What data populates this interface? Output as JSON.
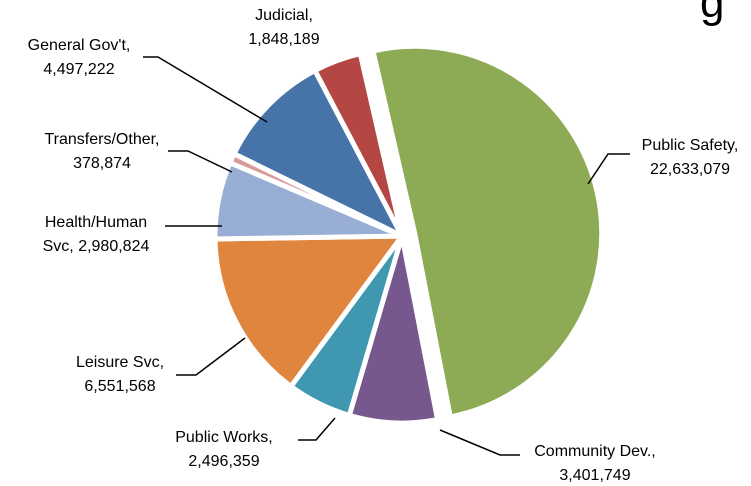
{
  "title_fragment": "g",
  "chart_data": {
    "type": "pie",
    "title": "",
    "slices": [
      {
        "name": "Public Safety",
        "value": 22633079,
        "value_label": "22,633,079",
        "color": "#8DAA54",
        "exploded": true
      },
      {
        "name": "Community Dev.",
        "value": 3401749,
        "value_label": "3,401,749",
        "color": "#76588F",
        "exploded": false
      },
      {
        "name": "Public Works",
        "value": 2496359,
        "value_label": "2,496,359",
        "color": "#4098B0",
        "exploded": false
      },
      {
        "name": "Leisure Svc",
        "value": 6551568,
        "value_label": "6,551,568",
        "color": "#E0853D",
        "exploded": false
      },
      {
        "name": "Health/Human Svc",
        "value": 2980824,
        "value_label": "2,980,824",
        "color": "#98AED4",
        "exploded": false
      },
      {
        "name": "Transfers/Other",
        "value": 378874,
        "value_label": "378,874",
        "color": "#D99B9A",
        "exploded": false
      },
      {
        "name": "General Gov't",
        "value": 4497222,
        "value_label": "4,497,222",
        "color": "#4673A8",
        "exploded": false
      },
      {
        "name": "Judicial",
        "value": 1848189,
        "value_label": "1,848,189",
        "color": "#B44644",
        "exploded": false
      }
    ],
    "labels": [
      {
        "lines": [
          "Public Safety,",
          "22,633,079"
        ]
      },
      {
        "lines": [
          "Community Dev.,",
          "3,401,749"
        ]
      },
      {
        "lines": [
          "Public Works,",
          "2,496,359"
        ]
      },
      {
        "lines": [
          "Leisure Svc,",
          "6,551,568"
        ]
      },
      {
        "lines": [
          "Health/Human",
          "Svc, 2,980,824"
        ]
      },
      {
        "lines": [
          "Transfers/Other,",
          "378,874"
        ]
      },
      {
        "lines": [
          "General Gov't,",
          "4,497,222"
        ]
      },
      {
        "lines": [
          "Judicial,",
          "1,848,189"
        ]
      }
    ]
  }
}
